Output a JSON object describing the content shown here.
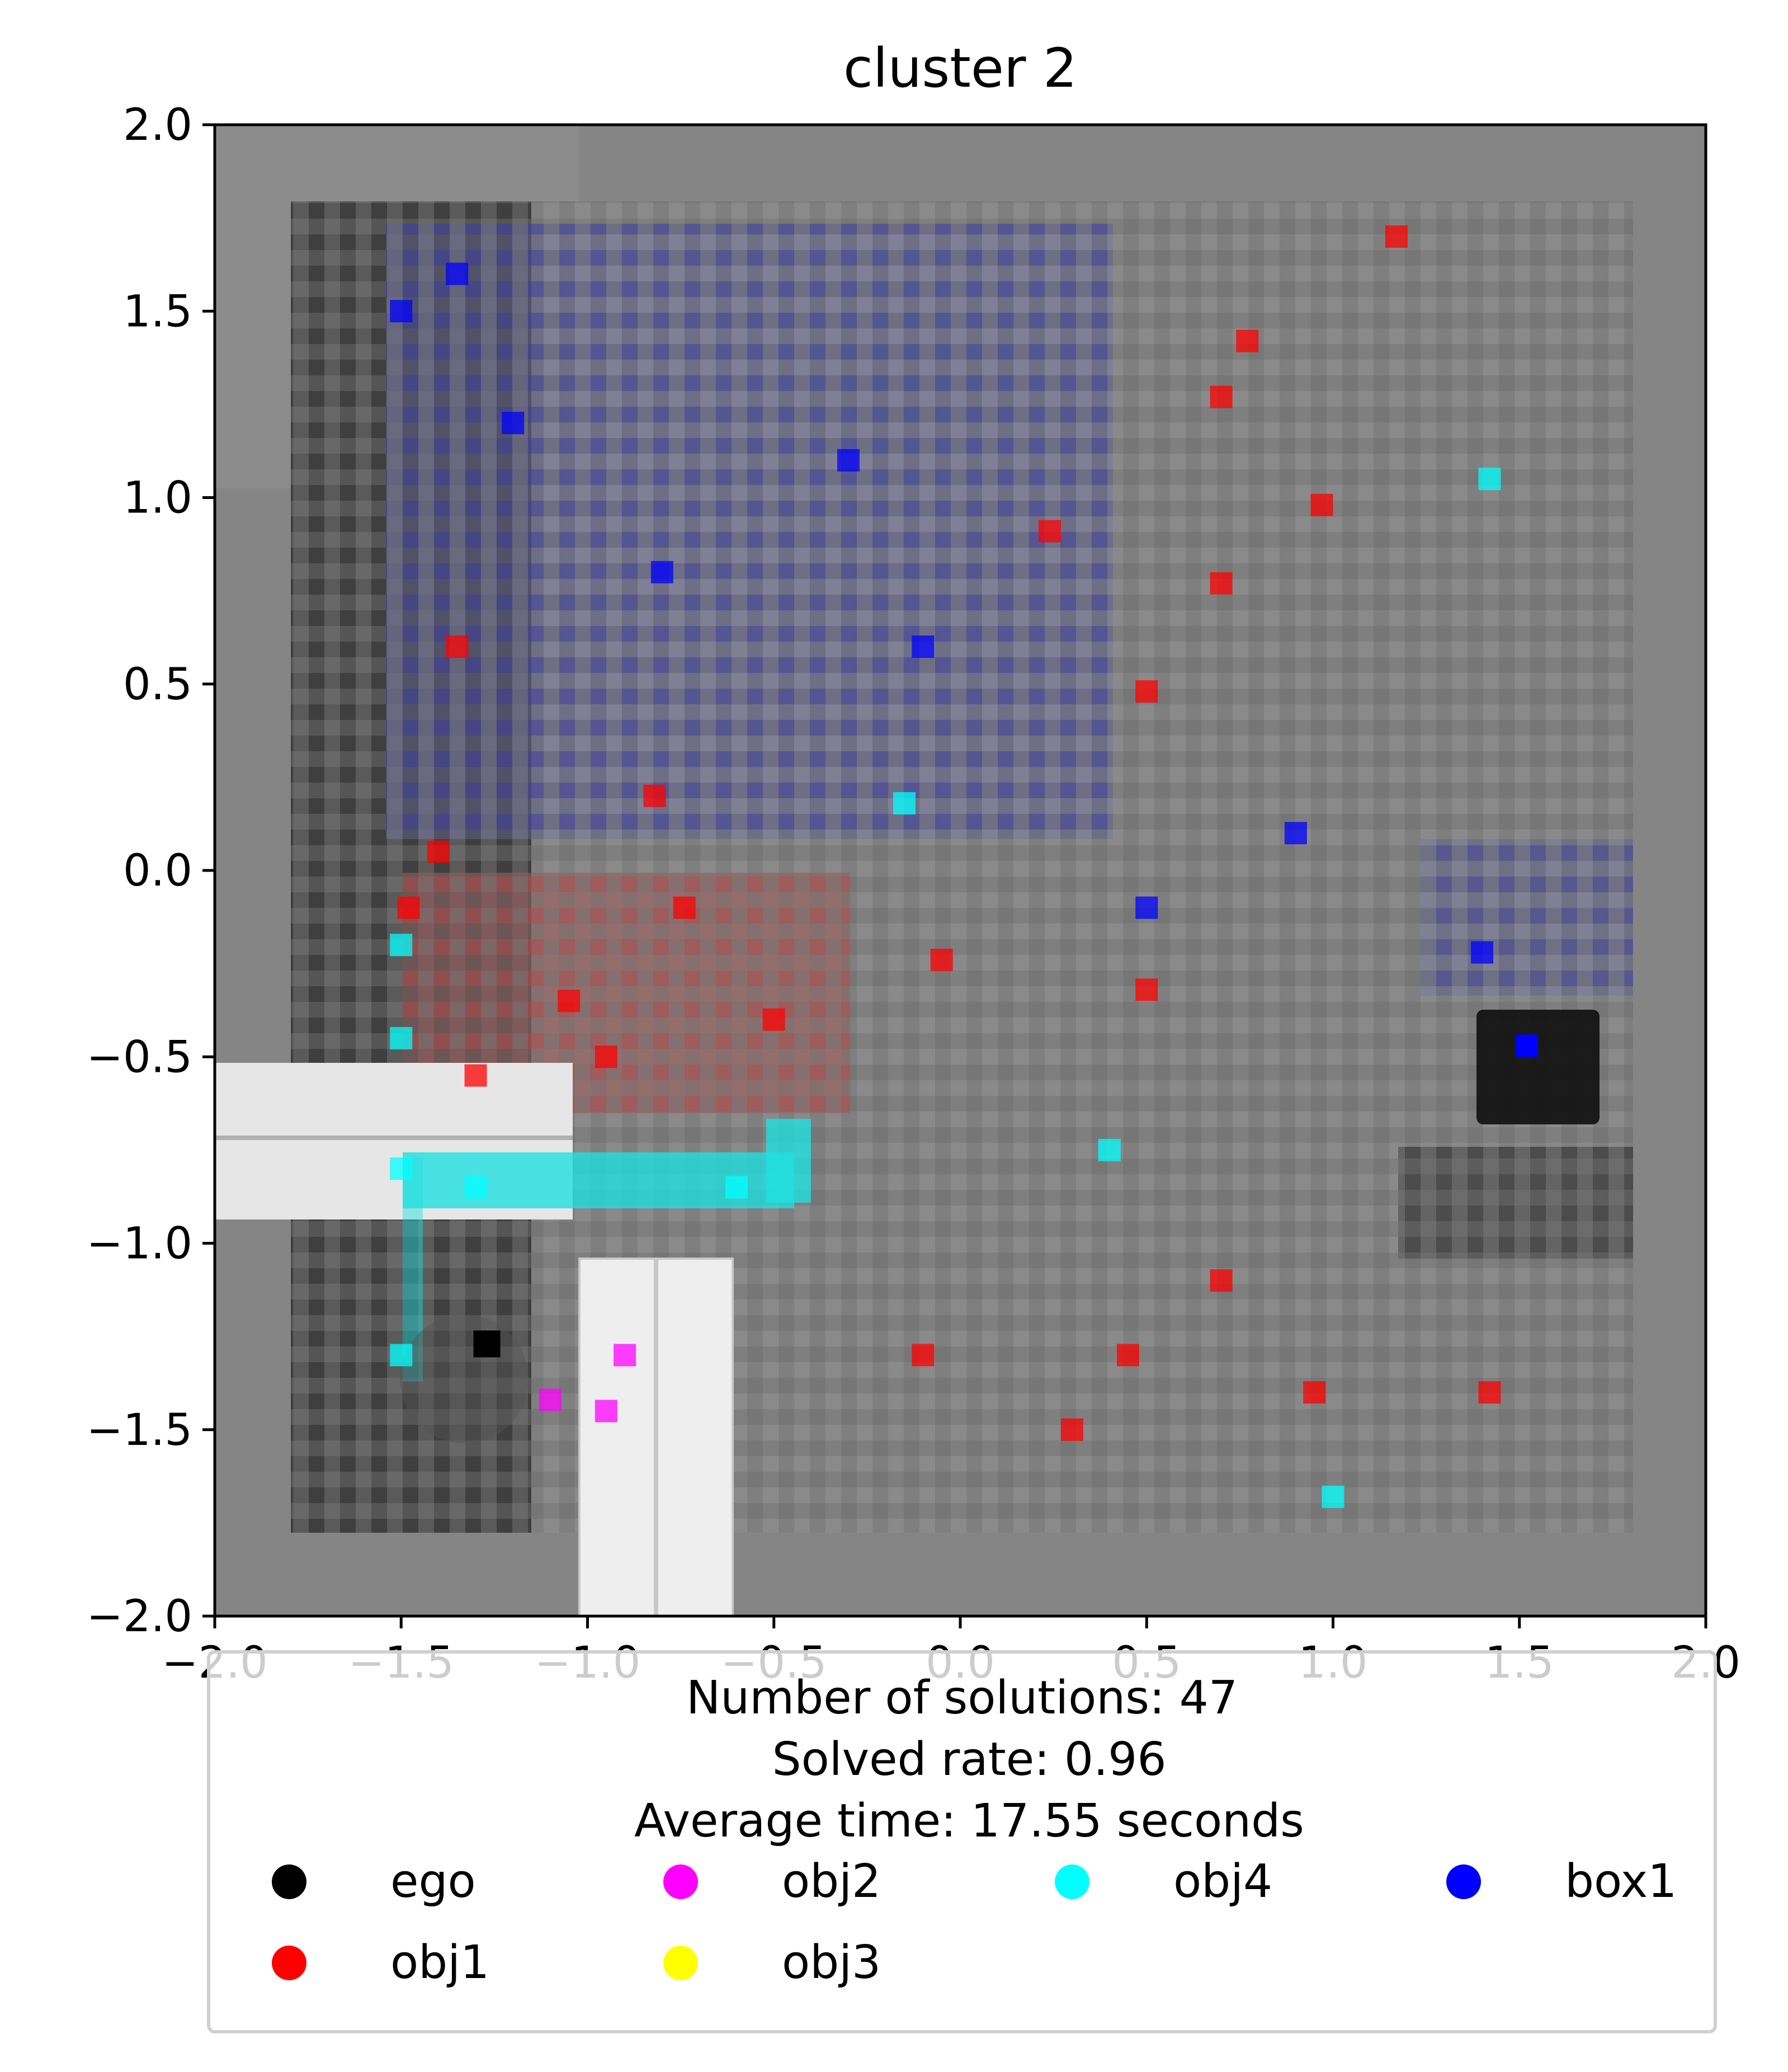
{
  "chart_data": {
    "type": "scatter",
    "title": "cluster 2",
    "xlabel": "",
    "ylabel": "",
    "xlim": [
      -2.0,
      2.0
    ],
    "ylim": [
      -2.0,
      2.0
    ],
    "xticks": [
      "−2.0",
      "−1.5",
      "−1.0",
      "−0.5",
      "0.0",
      "0.5",
      "1.0",
      "1.5",
      "2.0"
    ],
    "yticks": [
      "2.0",
      "1.5",
      "1.0",
      "0.5",
      "0.0",
      "−0.5",
      "−1.0",
      "−1.5",
      "−2.0"
    ],
    "xtick_values": [
      -2.0,
      -1.5,
      -1.0,
      -0.5,
      0.0,
      0.5,
      1.0,
      1.5,
      2.0
    ],
    "ytick_values": [
      2.0,
      1.5,
      1.0,
      0.5,
      0.0,
      -0.5,
      -1.0,
      -1.5,
      -2.0
    ],
    "legend_title_lines": [
      "Number of solutions: 47",
      " Solved rate: 0.96",
      " Average time: 17.55 seconds"
    ],
    "legend_placement": "bottom",
    "legend": [
      {
        "name": "ego",
        "color": "#000000"
      },
      {
        "name": "obj2",
        "color": "#ff00ff"
      },
      {
        "name": "obj4",
        "color": "#00ffff"
      },
      {
        "name": "box1",
        "color": "#0000ff"
      },
      {
        "name": "obj1",
        "color": "#ff0000"
      },
      {
        "name": "obj3",
        "color": "#ffff00"
      }
    ],
    "series": [
      {
        "name": "ego",
        "color": "#000000",
        "points": [
          [
            -1.27,
            -1.27
          ]
        ]
      },
      {
        "name": "box1",
        "color": "#0000ff",
        "points": [
          [
            1.52,
            -0.47
          ],
          [
            -1.5,
            1.5
          ],
          [
            -1.2,
            1.2
          ],
          [
            -0.8,
            0.8
          ],
          [
            0.5,
            -0.1
          ],
          [
            1.4,
            -0.22
          ],
          [
            -1.35,
            1.6
          ],
          [
            -0.3,
            1.1
          ],
          [
            -0.1,
            0.6
          ],
          [
            0.9,
            0.1
          ]
        ]
      },
      {
        "name": "obj1",
        "color": "#ff0000",
        "points": [
          [
            1.17,
            1.7
          ],
          [
            0.77,
            1.42
          ],
          [
            0.7,
            1.27
          ],
          [
            0.97,
            0.98
          ],
          [
            0.24,
            0.91
          ],
          [
            0.7,
            0.77
          ],
          [
            0.5,
            0.48
          ],
          [
            -1.35,
            0.6
          ],
          [
            -0.82,
            0.2
          ],
          [
            -1.4,
            0.05
          ],
          [
            -1.48,
            -0.1
          ],
          [
            -0.74,
            -0.1
          ],
          [
            -0.05,
            -0.24
          ],
          [
            0.5,
            -0.32
          ],
          [
            -0.95,
            -0.5
          ],
          [
            -1.3,
            -0.55
          ],
          [
            -0.5,
            -0.4
          ],
          [
            -1.05,
            -0.35
          ],
          [
            0.7,
            -1.1
          ],
          [
            -0.1,
            -1.3
          ],
          [
            0.45,
            -1.3
          ],
          [
            0.95,
            -1.4
          ],
          [
            1.42,
            -1.4
          ],
          [
            0.3,
            -1.5
          ]
        ]
      },
      {
        "name": "obj4",
        "color": "#00ffff",
        "points": [
          [
            1.42,
            1.05
          ],
          [
            -1.5,
            -0.2
          ],
          [
            -1.5,
            -0.45
          ],
          [
            -1.5,
            -0.8
          ],
          [
            -1.3,
            -0.85
          ],
          [
            -0.6,
            -0.85
          ],
          [
            -0.15,
            0.18
          ],
          [
            1.0,
            -1.68
          ],
          [
            -1.5,
            -1.3
          ],
          [
            0.4,
            -0.75
          ]
        ]
      },
      {
        "name": "obj2",
        "color": "#ff00ff",
        "points": [
          [
            -0.95,
            -1.45
          ],
          [
            -0.9,
            -1.3
          ],
          [
            -1.1,
            -1.42
          ]
        ]
      }
    ]
  }
}
